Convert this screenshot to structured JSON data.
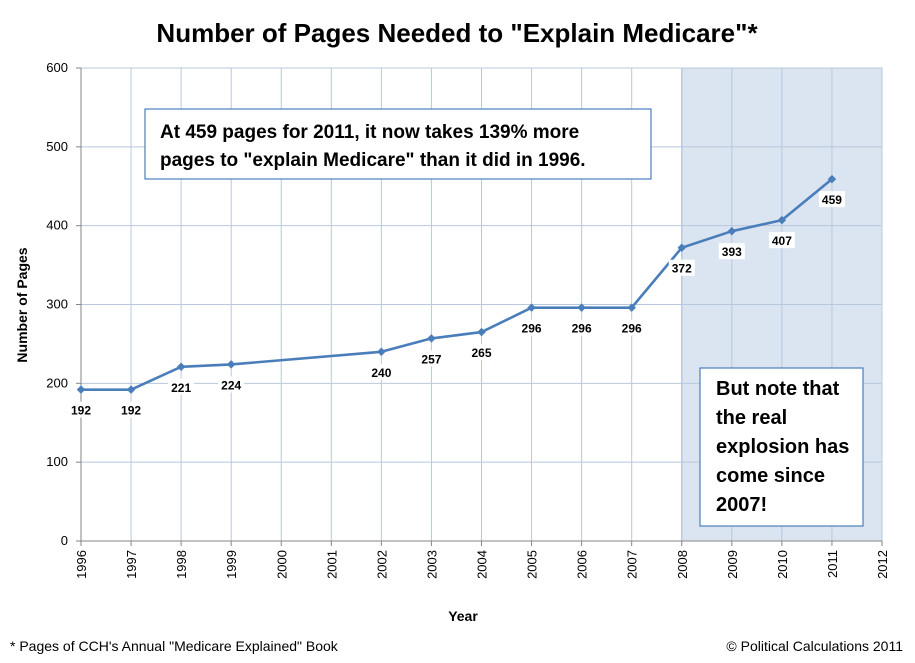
{
  "chart_data": {
    "type": "line",
    "title": "Number of Pages Needed to \"Explain Medicare\"*",
    "xlabel": "Year",
    "ylabel": "Number of Pages",
    "x_ticks": [
      "1996",
      "1997",
      "1998",
      "1999",
      "2000",
      "2001",
      "2002",
      "2003",
      "2004",
      "2005",
      "2006",
      "2007",
      "2008",
      "2009",
      "2010",
      "2011",
      "2012"
    ],
    "xlim": [
      1996,
      2012
    ],
    "ylim": [
      0,
      600
    ],
    "y_ticks": [
      "0",
      "100",
      "200",
      "300",
      "400",
      "500",
      "600"
    ],
    "grid": true,
    "highlight_range": [
      2008,
      2012
    ],
    "series": [
      {
        "name": "Pages",
        "color": "#4a7ebb",
        "points": [
          {
            "x": 1996,
            "y": 192,
            "label": "192"
          },
          {
            "x": 1997,
            "y": 192,
            "label": "192"
          },
          {
            "x": 1998,
            "y": 221,
            "label": "221"
          },
          {
            "x": 1999,
            "y": 224,
            "label": "224"
          },
          {
            "x": 2002,
            "y": 240,
            "label": "240"
          },
          {
            "x": 2003,
            "y": 257,
            "label": "257"
          },
          {
            "x": 2004,
            "y": 265,
            "label": "265"
          },
          {
            "x": 2005,
            "y": 296,
            "label": "296"
          },
          {
            "x": 2006,
            "y": 296,
            "label": "296"
          },
          {
            "x": 2007,
            "y": 296,
            "label": "296"
          },
          {
            "x": 2008,
            "y": 372,
            "label": "372"
          },
          {
            "x": 2009,
            "y": 393,
            "label": "393"
          },
          {
            "x": 2010,
            "y": 407,
            "label": "407"
          },
          {
            "x": 2011,
            "y": 459,
            "label": "459"
          }
        ]
      }
    ],
    "annotations": [
      {
        "name": "annotation-top",
        "lines": [
          "At 459 pages for 2011, it now takes 139% more",
          "pages to \"explain Medicare\" than it did in 1996."
        ]
      },
      {
        "name": "annotation-right",
        "lines": [
          "But note that",
          "the real",
          "explosion has",
          "come since",
          "2007!"
        ]
      }
    ],
    "footnote": "* Pages of CCH's Annual \"Medicare Explained\" Book",
    "credit": "© Political Calculations 2011"
  },
  "colors": {
    "line": "#4a7ebb",
    "grid": "#b8c8dd",
    "highlight": "#dbe5f1",
    "box_border": "#4a7ebb"
  }
}
